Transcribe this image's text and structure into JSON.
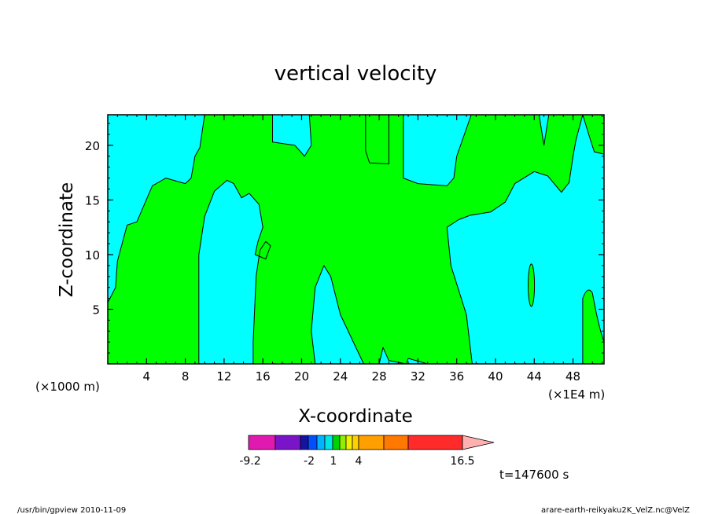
{
  "chart_data": {
    "type": "heatmap",
    "title": "vertical velocity",
    "xlabel": "X-coordinate",
    "ylabel": "Z-coordinate",
    "x_unit_left": "(×1000 m)",
    "x_unit_right": "(×1E4 m)",
    "xlim": [
      0,
      51.2
    ],
    "ylim": [
      0,
      22.8
    ],
    "x_ticks": [
      4,
      8,
      12,
      16,
      20,
      24,
      28,
      32,
      36,
      40,
      44,
      48
    ],
    "y_ticks": [
      5,
      10,
      15,
      20
    ],
    "field_colors": {
      "positive_region": "#00ff00",
      "negative_region": "#00ffff"
    },
    "regions": [
      {
        "id": "green-left-band",
        "fill": "positive_region",
        "outline": [
          [
            0,
            0
          ],
          [
            9.4,
            0
          ],
          [
            9.4,
            1.4
          ],
          [
            9.4,
            10
          ],
          [
            10,
            13.5
          ],
          [
            11,
            15.8
          ],
          [
            12.3,
            16.8
          ],
          [
            13,
            16.5
          ],
          [
            13.8,
            15.2
          ],
          [
            14.6,
            15.6
          ],
          [
            15.6,
            14.6
          ],
          [
            16,
            12.5
          ],
          [
            15.5,
            11.2
          ],
          [
            15.2,
            10
          ],
          [
            16.3,
            9.6
          ],
          [
            16.8,
            10.8
          ],
          [
            16.3,
            11.2
          ],
          [
            15.7,
            10.4
          ],
          [
            15.3,
            8
          ],
          [
            15,
            2
          ],
          [
            15,
            0
          ],
          [
            21.4,
            0
          ],
          [
            21,
            3
          ],
          [
            21.4,
            7
          ],
          [
            22.3,
            9
          ],
          [
            23,
            8
          ],
          [
            24,
            4.5
          ],
          [
            26.4,
            0
          ],
          [
            28,
            0
          ],
          [
            28.4,
            1.5
          ],
          [
            29,
            0.3
          ],
          [
            30.8,
            0
          ],
          [
            31,
            0.5
          ],
          [
            33,
            0
          ],
          [
            37.6,
            0
          ],
          [
            37,
            4.5
          ],
          [
            35.4,
            9
          ],
          [
            35,
            12.5
          ],
          [
            36.2,
            13.2
          ],
          [
            37.4,
            13.6
          ],
          [
            39.5,
            13.9
          ],
          [
            41,
            14.8
          ],
          [
            42,
            16.5
          ],
          [
            44,
            17.6
          ],
          [
            45.4,
            17.2
          ],
          [
            46.8,
            15.7
          ],
          [
            47.6,
            16.6
          ],
          [
            48,
            19
          ],
          [
            48.3,
            20.5
          ],
          [
            49,
            22.8
          ],
          [
            51.2,
            22.8
          ],
          [
            51.2,
            19.2
          ],
          [
            50.2,
            19.4
          ],
          [
            49.8,
            20.5
          ],
          [
            49,
            22.8
          ],
          [
            45.5,
            22.8
          ],
          [
            45,
            20
          ],
          [
            44.5,
            22.8
          ],
          [
            40,
            22.8
          ],
          [
            37.5,
            22.8
          ],
          [
            36,
            19
          ],
          [
            35.7,
            17
          ],
          [
            35,
            16.3
          ],
          [
            32,
            16.5
          ],
          [
            30.5,
            17
          ],
          [
            30.5,
            22.8
          ],
          [
            26.6,
            22.8
          ],
          [
            26.6,
            19.5
          ],
          [
            27,
            18.4
          ],
          [
            29,
            18.3
          ],
          [
            29,
            22.8
          ],
          [
            20.8,
            22.8
          ],
          [
            21,
            20
          ],
          [
            20.3,
            19
          ],
          [
            19.3,
            20
          ],
          [
            17,
            20.3
          ],
          [
            17,
            22.8
          ],
          [
            10,
            22.8
          ],
          [
            9.5,
            19.8
          ],
          [
            9,
            19
          ],
          [
            8.6,
            17
          ],
          [
            8,
            16.5
          ],
          [
            6,
            17
          ],
          [
            4.6,
            16.3
          ],
          [
            3,
            13
          ],
          [
            2,
            12.7
          ],
          [
            1,
            9.4
          ],
          [
            0.8,
            7
          ],
          [
            0,
            5.6
          ]
        ],
        "note_on_outline": "approximate boundary digitized in data units (x in ×1E4 m, z in ×1000 m)"
      }
    ],
    "colorbar": {
      "labels": [
        "-9.2",
        "-2",
        "1",
        "4",
        "16.5"
      ],
      "segment_colors": [
        "#e01ab0",
        "#7a14c8",
        "#1414a0",
        "#0050ff",
        "#00b4ff",
        "#00e6e6",
        "#00d400",
        "#90ee00",
        "#f0f000",
        "#ffd000",
        "#ffa000",
        "#ff7800",
        "#ff2a2a",
        "#ff7a7a",
        "#ffb0b0"
      ]
    },
    "time_label": "t=147600 s",
    "footer_left": "/usr/bin/gpview  2010-11-09",
    "footer_right": "arare-earth-reikyaku2K_VelZ.nc@VelZ"
  }
}
